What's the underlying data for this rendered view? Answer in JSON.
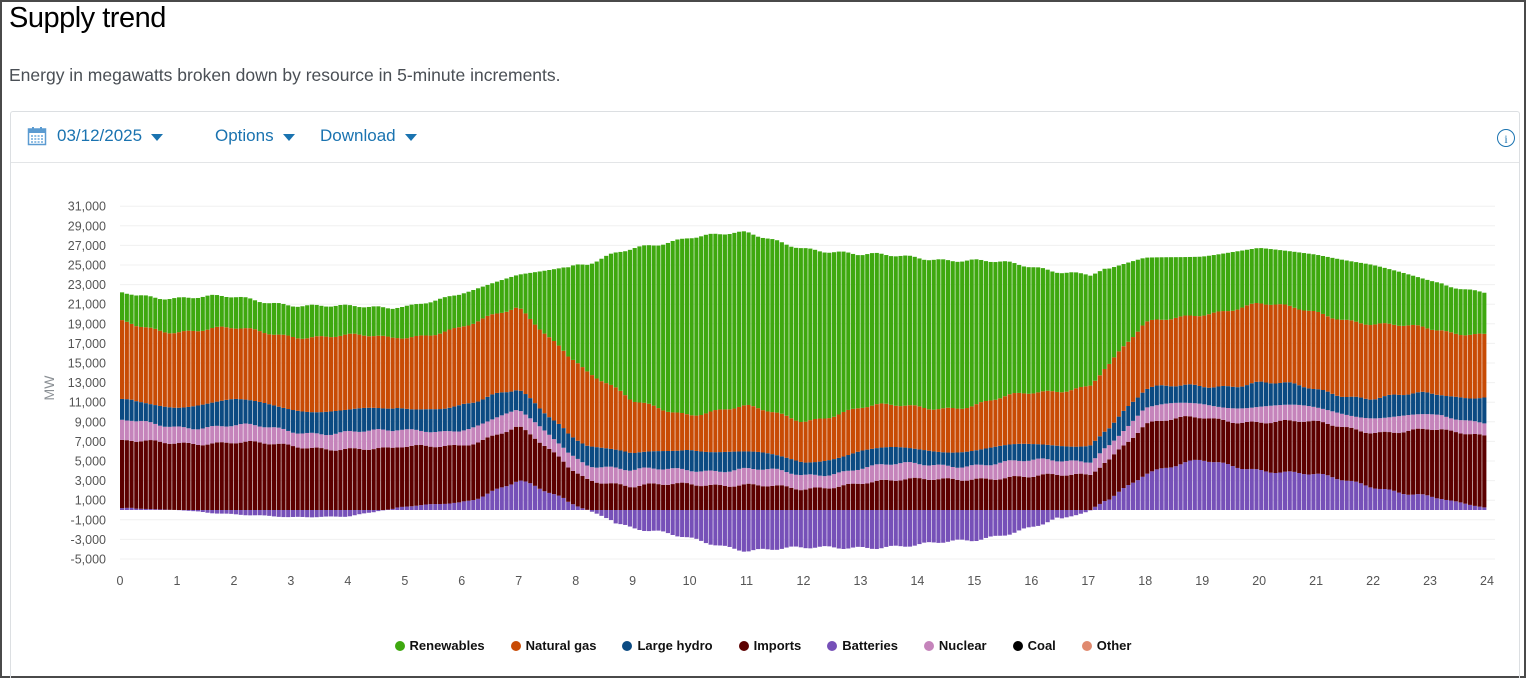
{
  "header": {
    "title": "Supply trend",
    "subtitle": "Energy in megawatts broken down by resource in 5-minute increments."
  },
  "toolbar": {
    "date": "03/12/2025",
    "options_label": "Options",
    "download_label": "Download",
    "calendar_icon": "calendar-icon",
    "info_icon": "info-icon",
    "info_glyph": "i"
  },
  "chart_data": {
    "type": "bar",
    "stacked": true,
    "title": "Supply trend",
    "xlabel": "",
    "ylabel": "MW",
    "xlim": [
      0,
      24
    ],
    "ylim": [
      -5000,
      31000
    ],
    "interval": "5-minute",
    "x_ticks": [
      "0",
      "1",
      "2",
      "3",
      "4",
      "5",
      "6",
      "7",
      "8",
      "9",
      "10",
      "11",
      "12",
      "13",
      "14",
      "15",
      "16",
      "17",
      "18",
      "19",
      "20",
      "21",
      "22",
      "23",
      "24"
    ],
    "y_ticks": [
      "31,000",
      "29,000",
      "27,000",
      "25,000",
      "23,000",
      "21,000",
      "19,000",
      "17,000",
      "15,000",
      "13,000",
      "11,000",
      "9,000",
      "7,000",
      "5,000",
      "3,000",
      "1,000",
      "-1,000",
      "-3,000",
      "-5,000"
    ],
    "y_tick_values": [
      31000,
      29000,
      27000,
      25000,
      23000,
      21000,
      19000,
      17000,
      15000,
      13000,
      11000,
      9000,
      7000,
      5000,
      3000,
      1000,
      -1000,
      -3000,
      -5000
    ],
    "hours": [
      0,
      1,
      2,
      3,
      4,
      5,
      6,
      7,
      8,
      9,
      10,
      11,
      12,
      13,
      14,
      15,
      16,
      17,
      18,
      19,
      20,
      21,
      22,
      23,
      24
    ],
    "legend_position": "bottom-center",
    "series": [
      {
        "name": "Renewables",
        "color": "#3ea80f",
        "values": [
          3100,
          3300,
          3300,
          3100,
          3000,
          3200,
          3300,
          3500,
          9600,
          15700,
          18000,
          17800,
          17600,
          15600,
          15300,
          14700,
          13000,
          11300,
          6800,
          5800,
          5700,
          5900,
          6000,
          5000,
          4100
        ]
      },
      {
        "name": "Natural gas",
        "color": "#c84b05",
        "values": [
          8100,
          7600,
          7300,
          7500,
          7500,
          7400,
          7800,
          8500,
          7800,
          5500,
          3500,
          4600,
          4300,
          4300,
          4500,
          4400,
          5400,
          6000,
          6800,
          7300,
          8000,
          8000,
          7400,
          6800,
          6300
        ]
      },
      {
        "name": "Large hydro",
        "color": "#0b4a82",
        "values": [
          2100,
          2100,
          2500,
          2400,
          2100,
          2300,
          2500,
          2100,
          2000,
          1600,
          2200,
          1600,
          1500,
          1600,
          1600,
          1500,
          1600,
          1700,
          1800,
          2000,
          2300,
          2000,
          1900,
          2200,
          2600
        ]
      },
      {
        "name": "Imports",
        "color": "#5c0000",
        "values": [
          6700,
          6900,
          6900,
          6500,
          6300,
          6000,
          6000,
          5300,
          3500,
          2300,
          2700,
          2600,
          2000,
          2900,
          3000,
          3300,
          3300,
          3700,
          5000,
          4300,
          5000,
          5200,
          5700,
          6700,
          7500
        ]
      },
      {
        "name": "Batteries",
        "color": "#7650b8",
        "values": [
          200,
          0,
          -400,
          -800,
          -600,
          300,
          800,
          3000,
          500,
          -1800,
          -3000,
          -4000,
          -4000,
          -3700,
          -3700,
          -3000,
          -1800,
          -200,
          3800,
          5000,
          4200,
          3500,
          2500,
          1300,
          200
        ]
      },
      {
        "name": "Nuclear",
        "color": "#c584bb",
        "values": [
          2000,
          1800,
          1600,
          1600,
          1700,
          1700,
          1600,
          1600,
          1600,
          1500,
          1600,
          1500,
          1500,
          1500,
          1500,
          1500,
          1500,
          1500,
          1500,
          1500,
          1500,
          1500,
          1500,
          1400,
          1500
        ]
      },
      {
        "name": "Coal",
        "color": "#000000",
        "values": [
          0,
          0,
          0,
          0,
          0,
          0,
          0,
          0,
          0,
          0,
          0,
          0,
          0,
          0,
          0,
          0,
          0,
          0,
          0,
          0,
          0,
          0,
          0,
          0,
          0
        ]
      },
      {
        "name": "Other",
        "color": "#e08a6f",
        "values": [
          0,
          0,
          0,
          0,
          0,
          0,
          0,
          0,
          0,
          0,
          0,
          0,
          0,
          0,
          0,
          0,
          0,
          0,
          0,
          0,
          0,
          0,
          0,
          0,
          0
        ]
      }
    ],
    "stack_order_bottom_to_top": [
      "Batteries",
      "Imports",
      "Nuclear",
      "Large hydro",
      "Natural gas",
      "Renewables",
      "Coal",
      "Other"
    ]
  }
}
